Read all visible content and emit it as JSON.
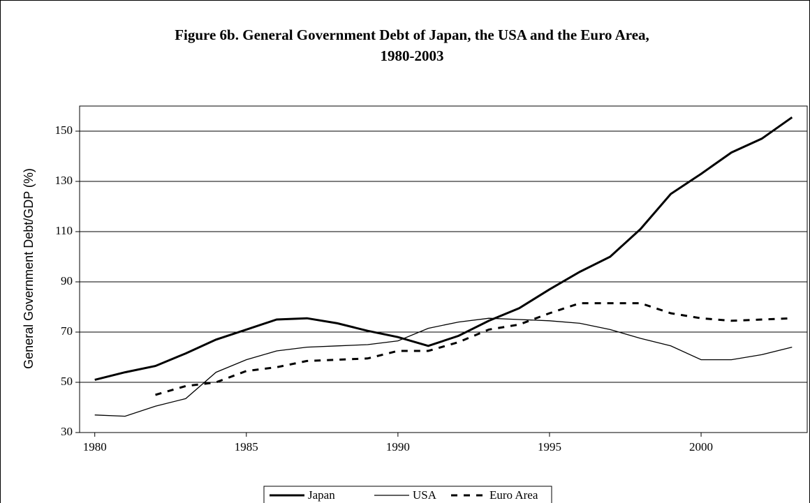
{
  "chart_data": {
    "type": "line",
    "title": [
      "Figure 6b. General Government Debt of Japan, the USA and the Euro Area,",
      "1980-2003"
    ],
    "y_label": "General Government Debt/GDP (%)",
    "x": [
      1980,
      1981,
      1982,
      1983,
      1984,
      1985,
      1986,
      1987,
      1988,
      1989,
      1990,
      1991,
      1992,
      1993,
      1994,
      1995,
      1996,
      1997,
      1998,
      1999,
      2000,
      2001,
      2002,
      2003
    ],
    "xlim": [
      1979.5,
      2003.5
    ],
    "xticks": [
      1980,
      1985,
      1990,
      1995,
      2000
    ],
    "ylim": [
      30,
      160
    ],
    "yticks": [
      30,
      50,
      70,
      90,
      110,
      130,
      150
    ],
    "grid": true,
    "legend": "bottom",
    "series": [
      {
        "name": "Japan",
        "color": "#000000",
        "style": "solid-thick",
        "values": [
          51,
          54,
          56.5,
          61.5,
          67,
          71,
          75,
          75.5,
          73.5,
          70.5,
          68,
          64.5,
          68.5,
          74.5,
          79.5,
          87,
          94,
          100,
          111,
          125,
          133,
          141.5,
          147,
          155.5
        ]
      },
      {
        "name": "USA",
        "color": "#000000",
        "style": "solid-thin",
        "values": [
          37,
          36.5,
          40.5,
          43.5,
          54,
          59,
          62.5,
          64,
          64.5,
          65,
          66.5,
          71.5,
          74,
          75.5,
          75,
          74.5,
          73.5,
          71,
          67.5,
          64.5,
          59,
          59,
          61,
          64
        ]
      },
      {
        "name": "Euro Area",
        "color": "#000000",
        "style": "dashed",
        "values": [
          null,
          null,
          45,
          48.5,
          50,
          54.5,
          56,
          58.5,
          59,
          59.5,
          62.5,
          62.5,
          66,
          71,
          73,
          77.5,
          81.5,
          81.5,
          81.5,
          77.5,
          75.5,
          74.5,
          75,
          75.5
        ]
      }
    ]
  }
}
